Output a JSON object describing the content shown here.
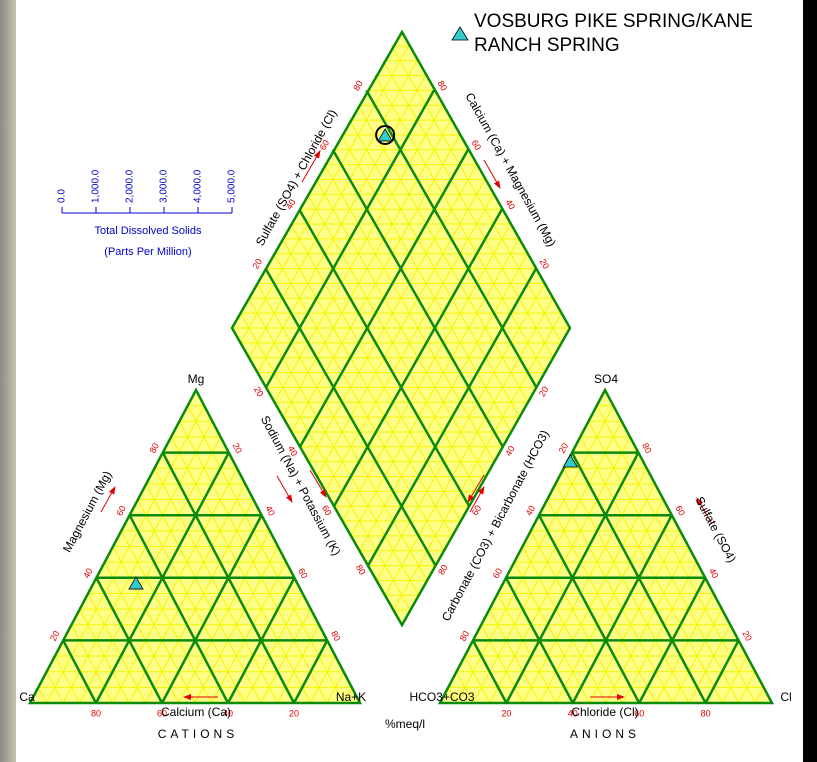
{
  "chart_data": {
    "type": "piper",
    "legend_position": "upper right",
    "ticks": [
      20,
      40,
      60,
      80
    ],
    "cations": {
      "title": "CATIONS",
      "top": "Mg",
      "left": "Ca",
      "right": "Na+K",
      "left_axis": "Magnesium (Mg)",
      "right_axis": "Sodium (Na) + Potassium (K)",
      "bottom_axis": "Calcium (Ca)"
    },
    "anions": {
      "title": "ANIONS",
      "top": "SO4",
      "left": "HCO3+CO3",
      "right": "Cl",
      "left_axis": "Carbonate (CO3) + Bicarbonate (HCO3)",
      "right_axis": "Sulfate (SO4)",
      "bottom_axis": "Chloride (Cl)"
    },
    "diamond": {
      "left_axis": "Sulfate (SO4) + Chloride (Cl)",
      "right_axis": "Calcium (Ca) + Magnesium (Mg)"
    },
    "units": "%meq/l",
    "tds_scale": {
      "title": "Total Dissolved Solids",
      "subtitle": "(Parts Per Million)",
      "xlim": [
        0,
        5000
      ],
      "xticks": [
        {
          "value": 0,
          "label": "0.0"
        },
        {
          "value": 1000,
          "label": "1,000.0"
        },
        {
          "value": 2000,
          "label": "2,000.0"
        },
        {
          "value": 3000,
          "label": "3,000.0"
        },
        {
          "value": 4000,
          "label": "4,000.0"
        },
        {
          "value": 5000,
          "label": "5,000.0"
        }
      ]
    },
    "series": [
      {
        "name": "VOSBURG PIKE SPRING/KANE RANCH SPRING",
        "color": "#33cccc",
        "cations": {
          "ca": 49,
          "mg": 38,
          "na_k": 13
        },
        "anions": {
          "hco3_co3": 22,
          "so4": 77,
          "cl": 1
        }
      }
    ]
  }
}
